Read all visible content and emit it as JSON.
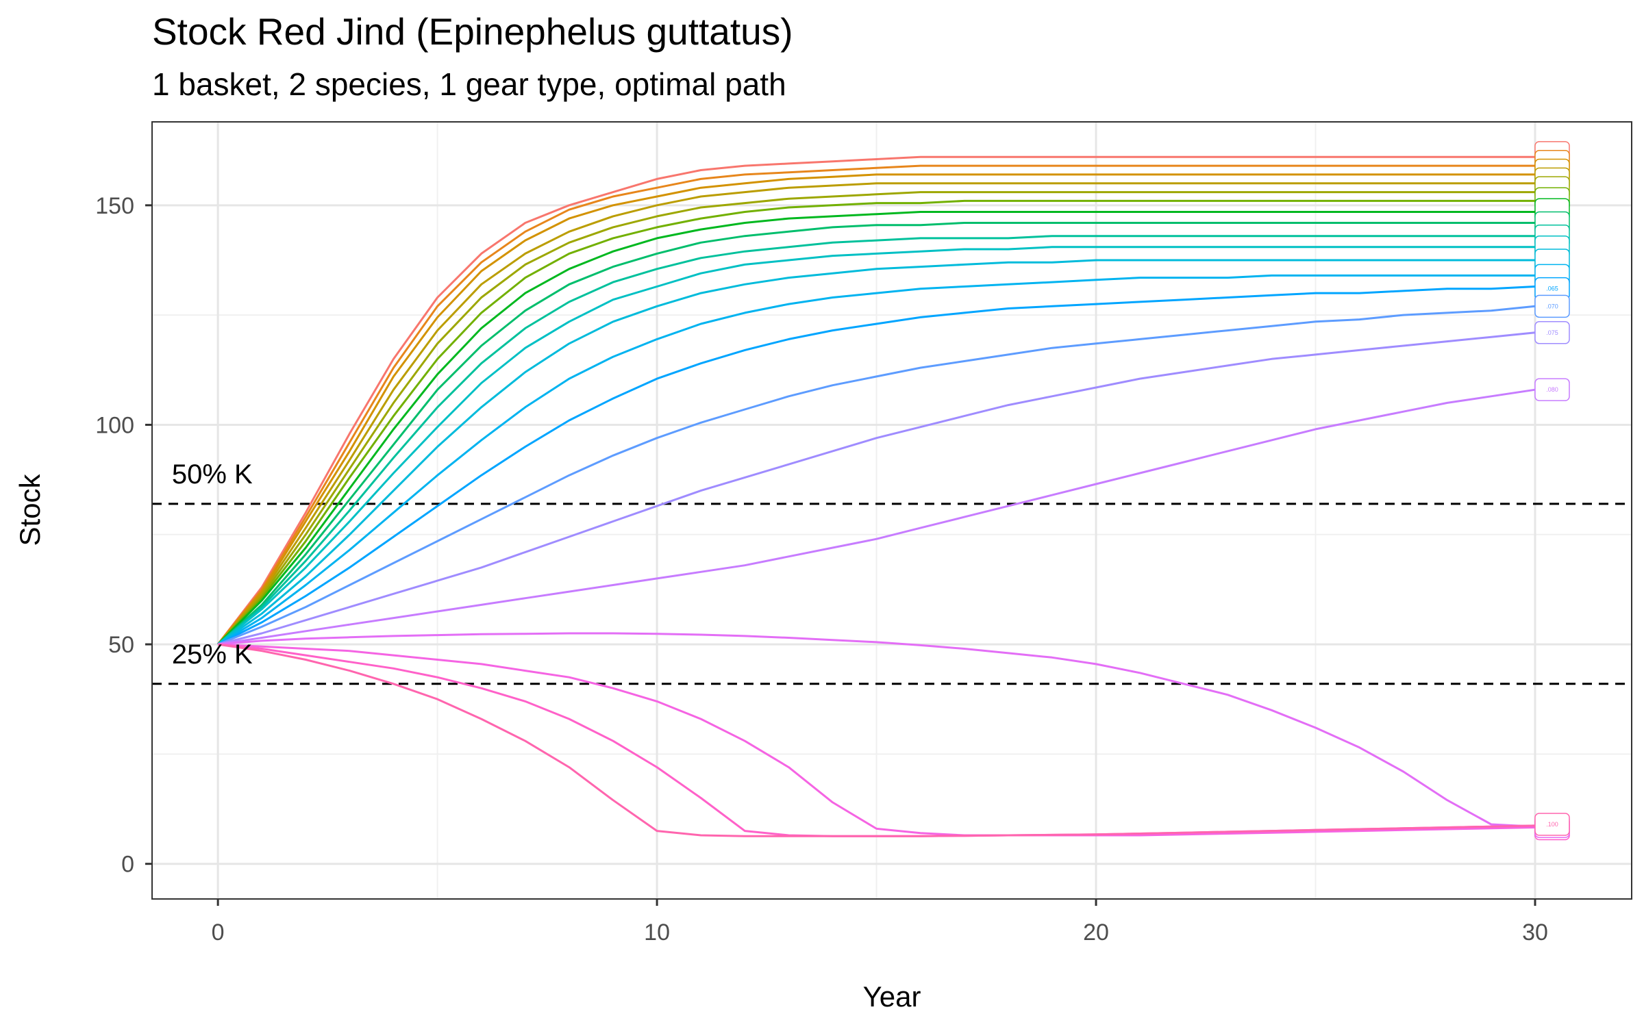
{
  "chart_data": {
    "type": "line",
    "title": "Stock Red Jind (Epinephelus guttatus)",
    "subtitle": "1 basket, 2 species, 1 gear type, optimal path",
    "xlabel": "Year",
    "ylabel": "Stock",
    "xlim": [
      -1.5,
      32.2
    ],
    "ylim": [
      -8,
      169
    ],
    "x_ticks": [
      0,
      10,
      20,
      30
    ],
    "y_ticks": [
      0,
      50,
      100,
      150
    ],
    "grid": true,
    "legend": "none",
    "reference_lines": [
      {
        "label": "50% K",
        "y": 82
      },
      {
        "label": "25% K",
        "y": 41
      }
    ],
    "x": [
      0,
      1,
      2,
      3,
      4,
      5,
      6,
      7,
      8,
      9,
      10,
      11,
      12,
      13,
      14,
      15,
      16,
      17,
      18,
      19,
      20,
      21,
      22,
      23,
      24,
      25,
      26,
      27,
      28,
      29,
      30
    ],
    "series": [
      {
        "label": "",
        "color": "#F8766D",
        "values": [
          50,
          63,
          80,
          98,
          115,
          129,
          139,
          146,
          150,
          153,
          156,
          158,
          159,
          159.5,
          160,
          160.5,
          161,
          161,
          161,
          161,
          161,
          161,
          161,
          161,
          161,
          161,
          161,
          161,
          161,
          161,
          161
        ]
      },
      {
        "label": "",
        "color": "#E7861B",
        "values": [
          50,
          62.5,
          79,
          96,
          113,
          127,
          137,
          144,
          149,
          152,
          154,
          156,
          157,
          157.5,
          158,
          158.5,
          159,
          159,
          159,
          159,
          159,
          159,
          159,
          159,
          159,
          159,
          159,
          159,
          159,
          159,
          159
        ]
      },
      {
        "label": "",
        "color": "#D39200",
        "values": [
          50,
          62,
          78,
          94,
          111,
          124.5,
          135,
          142,
          147,
          150,
          152,
          154,
          155,
          156,
          156.5,
          157,
          157,
          157,
          157,
          157,
          157,
          157,
          157,
          157,
          157,
          157,
          157,
          157,
          157,
          157,
          157
        ]
      },
      {
        "label": "",
        "color": "#BB9D00",
        "values": [
          50,
          61.5,
          76.5,
          92,
          108,
          121.5,
          132,
          139,
          144,
          147.5,
          150,
          152,
          153,
          154,
          154.5,
          155,
          155,
          155,
          155,
          155,
          155,
          155,
          155,
          155,
          155,
          155,
          155,
          155,
          155,
          155,
          155
        ]
      },
      {
        "label": "",
        "color": "#9DA700",
        "values": [
          50,
          61,
          75,
          90,
          105,
          118.5,
          129,
          136.5,
          141.5,
          145,
          147.5,
          149.5,
          150.5,
          151.5,
          152,
          152.5,
          153,
          153,
          153,
          153,
          153,
          153,
          153,
          153,
          153,
          153,
          153,
          153,
          153,
          153,
          153
        ]
      },
      {
        "label": "",
        "color": "#72B000",
        "values": [
          50,
          60.5,
          73.5,
          88,
          102,
          115,
          125.5,
          133.5,
          139,
          142.5,
          145,
          147,
          148.5,
          149.5,
          150,
          150.5,
          150.5,
          151,
          151,
          151,
          151,
          151,
          151,
          151,
          151,
          151,
          151,
          151,
          151,
          151,
          151
        ]
      },
      {
        "label": "",
        "color": "#00B81F",
        "values": [
          50,
          60,
          72,
          85.5,
          99,
          111.5,
          122,
          130,
          135.5,
          139.5,
          142.5,
          144.5,
          146,
          147,
          147.5,
          148,
          148.5,
          148.5,
          148.5,
          148.5,
          148.5,
          148.5,
          148.5,
          148.5,
          148.5,
          148.5,
          148.5,
          148.5,
          148.5,
          148.5,
          148.5
        ]
      },
      {
        "label": "",
        "color": "#00BE6C",
        "values": [
          50,
          59,
          70.5,
          83,
          95.5,
          108,
          118,
          126,
          132,
          136,
          139,
          141.5,
          143,
          144,
          145,
          145.5,
          145.5,
          146,
          146,
          146,
          146,
          146,
          146,
          146,
          146,
          146,
          146,
          146,
          146,
          146,
          146
        ]
      },
      {
        "label": "",
        "color": "#00C19C",
        "values": [
          50,
          58.5,
          69,
          80.5,
          92.5,
          104,
          114,
          122,
          128,
          132.5,
          135.5,
          138,
          139.5,
          140.5,
          141.5,
          142,
          142.5,
          142.5,
          142.5,
          143,
          143,
          143,
          143,
          143,
          143,
          143,
          143,
          143,
          143,
          143,
          143
        ]
      },
      {
        "label": "",
        "color": "#00C0C4",
        "values": [
          50,
          58,
          67.5,
          78,
          89,
          99.5,
          109.5,
          117.5,
          123.5,
          128.5,
          131.5,
          134.5,
          136.5,
          137.5,
          138.5,
          139,
          139.5,
          140,
          140,
          140.5,
          140.5,
          140.5,
          140.5,
          140.5,
          140.5,
          140.5,
          140.5,
          140.5,
          140.5,
          140.5,
          140.5
        ]
      },
      {
        "label": "",
        "color": "#00BBDB",
        "values": [
          50,
          57,
          65.5,
          75,
          85,
          95,
          104,
          112,
          118.5,
          123.5,
          127,
          130,
          132,
          133.5,
          134.5,
          135.5,
          136,
          136.5,
          137,
          137,
          137.5,
          137.5,
          137.5,
          137.5,
          137.5,
          137.5,
          137.5,
          137.5,
          137.5,
          137.5,
          137.5
        ]
      },
      {
        "label": "",
        "color": "#00B3F0",
        "values": [
          50,
          56,
          63.5,
          71.5,
          80,
          88.5,
          96.5,
          104,
          110.5,
          115.5,
          119.5,
          123,
          125.5,
          127.5,
          129,
          130,
          131,
          131.5,
          132,
          132.5,
          133,
          133.5,
          133.5,
          133.5,
          134,
          134,
          134,
          134,
          134,
          134,
          134
        ]
      },
      {
        "label": "",
        "color": "#00A5FF",
        "values": [
          50,
          55,
          61,
          67.5,
          74.5,
          81.5,
          88.5,
          95,
          101,
          106,
          110.5,
          114,
          117,
          119.5,
          121.5,
          123,
          124.5,
          125.5,
          126.5,
          127,
          127.5,
          128,
          128.5,
          129,
          129.5,
          130,
          130,
          130.5,
          131,
          131,
          131.5
        ]
      },
      {
        "label": "",
        "color": "#5D9CFF",
        "values": [
          50,
          54,
          58.5,
          63.5,
          68.5,
          73.5,
          78.5,
          83.5,
          88.5,
          93,
          97,
          100.5,
          103.5,
          106.5,
          109,
          111,
          113,
          114.5,
          116,
          117.5,
          118.5,
          119.5,
          120.5,
          121.5,
          122.5,
          123.5,
          124,
          125,
          125.5,
          126,
          127
        ]
      },
      {
        "label": "",
        "color": "#9F8CFF",
        "values": [
          50,
          52.5,
          55.5,
          58.5,
          61.5,
          64.5,
          67.5,
          71,
          74.5,
          78,
          81.5,
          85,
          88,
          91,
          94,
          97,
          99.5,
          102,
          104.5,
          106.5,
          108.5,
          110.5,
          112,
          113.5,
          115,
          116,
          117,
          118,
          119,
          120,
          121
        ]
      },
      {
        "label": "",
        "color": "#C77CFF",
        "values": [
          50,
          51.5,
          53,
          54.5,
          56,
          57.5,
          59,
          60.5,
          62,
          63.5,
          65,
          66.5,
          68,
          70,
          72,
          74,
          76.5,
          79,
          81.5,
          84,
          86.5,
          89,
          91.5,
          94,
          96.5,
          99,
          101,
          103,
          105,
          106.5,
          108
        ]
      },
      {
        "label": "",
        "color": "#E36EF6",
        "values": [
          50,
          50.8,
          51.3,
          51.6,
          51.9,
          52.1,
          52.3,
          52.4,
          52.5,
          52.5,
          52.4,
          52.2,
          51.9,
          51.5,
          51,
          50.5,
          49.8,
          49,
          48,
          47,
          45.5,
          43.5,
          41,
          38.5,
          35,
          31,
          26.5,
          21,
          14.5,
          9,
          8.5
        ]
      },
      {
        "label": "",
        "color": "#F564E3",
        "values": [
          50,
          49.5,
          49,
          48.5,
          47.5,
          46.5,
          45.5,
          44,
          42.5,
          40,
          37,
          33,
          28,
          22,
          14,
          8,
          7,
          6.5,
          6.5,
          6.5,
          6.5,
          6.5,
          6.7,
          6.9,
          7.1,
          7.3,
          7.5,
          7.7,
          7.9,
          8.1,
          8.3
        ]
      },
      {
        "label": "",
        "color": "#FF61C9",
        "values": [
          50,
          49,
          47.5,
          46,
          44.5,
          42.5,
          40,
          37,
          33,
          28,
          22,
          15,
          7.5,
          6.5,
          6.3,
          6.3,
          6.3,
          6.4,
          6.5,
          6.6,
          6.7,
          6.9,
          7.1,
          7.3,
          7.5,
          7.7,
          7.9,
          8.1,
          8.3,
          8.5,
          8.7
        ]
      },
      {
        "label": "",
        "color": "#FF65AE",
        "values": [
          50,
          48.5,
          46.5,
          44,
          41,
          37.5,
          33,
          28,
          22,
          14.5,
          7.5,
          6.5,
          6.3,
          6.3,
          6.3,
          6.3,
          6.3,
          6.4,
          6.5,
          6.6,
          6.7,
          6.9,
          7.1,
          7.3,
          7.5,
          7.7,
          7.9,
          8.1,
          8.3,
          8.5,
          8.7
        ]
      }
    ],
    "end_labels": [
      {
        "text": "",
        "y": 162,
        "color": "#F8766D"
      },
      {
        "text": "",
        "y": 160,
        "color": "#E7861B"
      },
      {
        "text": "",
        "y": 158,
        "color": "#D39200"
      },
      {
        "text": "",
        "y": 156,
        "color": "#BB9D00"
      },
      {
        "text": "",
        "y": 154,
        "color": "#9DA700"
      },
      {
        "text": "",
        "y": 151.5,
        "color": "#72B000"
      },
      {
        "text": "",
        "y": 149,
        "color": "#00B81F"
      },
      {
        "text": "",
        "y": 146,
        "color": "#00BE6C"
      },
      {
        "text": "",
        "y": 143,
        "color": "#00C19C"
      },
      {
        "text": "",
        "y": 140.5,
        "color": "#00C0C4"
      },
      {
        "text": "",
        "y": 137.5,
        "color": "#00BBDB"
      },
      {
        "text": "",
        "y": 134,
        "color": "#00B3F0"
      },
      {
        "text": ".065",
        "y": 131,
        "color": "#00A5FF"
      },
      {
        "text": ".070",
        "y": 127,
        "color": "#5D9CFF"
      },
      {
        "text": ".075",
        "y": 121,
        "color": "#9F8CFF"
      },
      {
        "text": ".080",
        "y": 108,
        "color": "#C77CFF"
      },
      {
        "text": "",
        "y": 8,
        "color": "#F564E3"
      },
      {
        "text": "",
        "y": 8,
        "color": "#FF61C9"
      },
      {
        "text": "",
        "y": 8.5,
        "color": "#E36EF6"
      },
      {
        "text": ".100",
        "y": 9,
        "color": "#FF65AE"
      }
    ]
  }
}
